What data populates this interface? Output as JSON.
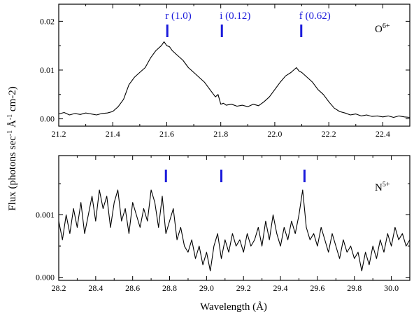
{
  "figure": {
    "ylabel": {
      "main": "Flux (photons sec",
      "exp1": "-1",
      "mid": " Å",
      "exp2": "-1",
      "tail": " cm-2)"
    },
    "xlabel": "Wavelength (Å)"
  },
  "colors": {
    "line_marker": "#1a1adb",
    "curve": "#000000"
  },
  "chart_data": [
    {
      "type": "line",
      "ion_label": {
        "base": "O",
        "sup": "6+"
      },
      "xlim": [
        21.2,
        22.5
      ],
      "ylim": [
        -0.0015,
        0.0235
      ],
      "xticks": [
        "21.2",
        "21.4",
        "21.6",
        "21.8",
        "22.0",
        "22.2",
        "22.4"
      ],
      "yticks": [
        "0.00",
        "0.01",
        "0.02"
      ],
      "line_markers": [
        {
          "x": 21.602,
          "label": "r (1.0)"
        },
        {
          "x": 21.804,
          "label": "i (0.12)"
        },
        {
          "x": 22.098,
          "label": "f (0.62)"
        }
      ],
      "series": [
        {
          "x": [
            21.2,
            21.22,
            21.24,
            21.26,
            21.28,
            21.3,
            21.32,
            21.34,
            21.36,
            21.38,
            21.4,
            21.42,
            21.44,
            21.46,
            21.48,
            21.5,
            21.52,
            21.54,
            21.56,
            21.58,
            21.59,
            21.6,
            21.61,
            21.62,
            21.64,
            21.66,
            21.68,
            21.7,
            21.72,
            21.74,
            21.76,
            21.78,
            21.79,
            21.8,
            21.81,
            21.82,
            21.84,
            21.86,
            21.88,
            21.9,
            21.92,
            21.94,
            21.96,
            21.98,
            22.0,
            22.02,
            22.04,
            22.06,
            22.08,
            22.09,
            22.1,
            22.11,
            22.12,
            22.14,
            22.16,
            22.18,
            22.2,
            22.22,
            22.24,
            22.26,
            22.28,
            22.3,
            22.32,
            22.34,
            22.36,
            22.38,
            22.4,
            22.42,
            22.44,
            22.46,
            22.48,
            22.5
          ],
          "y": [
            0.001,
            0.0013,
            0.0008,
            0.0011,
            0.0009,
            0.0012,
            0.001,
            0.0008,
            0.0011,
            0.0012,
            0.0015,
            0.0025,
            0.004,
            0.007,
            0.0085,
            0.0095,
            0.0105,
            0.0125,
            0.014,
            0.015,
            0.0158,
            0.015,
            0.0148,
            0.014,
            0.013,
            0.012,
            0.0105,
            0.0095,
            0.0085,
            0.0075,
            0.006,
            0.0045,
            0.005,
            0.003,
            0.0032,
            0.0028,
            0.003,
            0.0026,
            0.0028,
            0.0025,
            0.003,
            0.0027,
            0.0035,
            0.0045,
            0.006,
            0.0075,
            0.0088,
            0.0095,
            0.0105,
            0.0098,
            0.0095,
            0.009,
            0.0085,
            0.0075,
            0.006,
            0.005,
            0.0035,
            0.0022,
            0.0015,
            0.0012,
            0.0008,
            0.001,
            0.0006,
            0.0008,
            0.0005,
            0.0006,
            0.0004,
            0.0006,
            0.0003,
            0.0006,
            0.0004,
            0.0003
          ]
        }
      ]
    },
    {
      "type": "line",
      "ion_label": {
        "base": "N",
        "sup": "5+"
      },
      "xlim": [
        28.2,
        30.1
      ],
      "ylim": [
        -5e-05,
        0.00195
      ],
      "xticks": [
        "28.2",
        "28.4",
        "28.6",
        "28.8",
        "29.0",
        "29.2",
        "29.4",
        "29.6",
        "29.8",
        "30.0"
      ],
      "yticks": [
        "0.000",
        "0.001"
      ],
      "line_markers": [
        {
          "x": 28.78
        },
        {
          "x": 29.08
        },
        {
          "x": 29.53
        }
      ],
      "series": [
        {
          "x": [
            28.2,
            28.22,
            28.24,
            28.26,
            28.28,
            28.3,
            28.32,
            28.34,
            28.36,
            28.38,
            28.4,
            28.42,
            28.44,
            28.46,
            28.48,
            28.5,
            28.52,
            28.54,
            28.56,
            28.58,
            28.6,
            28.62,
            28.64,
            28.66,
            28.68,
            28.7,
            28.72,
            28.74,
            28.76,
            28.78,
            28.8,
            28.82,
            28.84,
            28.86,
            28.88,
            28.9,
            28.92,
            28.94,
            28.96,
            28.98,
            29.0,
            29.02,
            29.04,
            29.06,
            29.08,
            29.1,
            29.12,
            29.14,
            29.16,
            29.18,
            29.2,
            29.22,
            29.24,
            29.26,
            29.28,
            29.3,
            29.32,
            29.34,
            29.36,
            29.38,
            29.4,
            29.42,
            29.44,
            29.46,
            29.48,
            29.5,
            29.52,
            29.54,
            29.56,
            29.58,
            29.6,
            29.62,
            29.64,
            29.66,
            29.68,
            29.7,
            29.72,
            29.74,
            29.76,
            29.78,
            29.8,
            29.82,
            29.84,
            29.86,
            29.88,
            29.9,
            29.92,
            29.94,
            29.96,
            29.98,
            30.0,
            30.02,
            30.04,
            30.06,
            30.08,
            30.1
          ],
          "y": [
            0.0009,
            0.0006,
            0.001,
            0.0007,
            0.0011,
            0.0008,
            0.0012,
            0.0007,
            0.001,
            0.0013,
            0.0009,
            0.0014,
            0.0011,
            0.0013,
            0.0008,
            0.0012,
            0.0014,
            0.0009,
            0.0011,
            0.0007,
            0.0012,
            0.001,
            0.0008,
            0.0011,
            0.0009,
            0.0014,
            0.0012,
            0.0008,
            0.0013,
            0.0007,
            0.0009,
            0.0011,
            0.0006,
            0.0008,
            0.0005,
            0.0004,
            0.0006,
            0.0003,
            0.0005,
            0.0002,
            0.0004,
            0.0001,
            0.0005,
            0.0007,
            0.0003,
            0.0006,
            0.0004,
            0.0007,
            0.0005,
            0.0006,
            0.0004,
            0.0007,
            0.0005,
            0.0006,
            0.0008,
            0.0005,
            0.0009,
            0.0006,
            0.001,
            0.0007,
            0.0005,
            0.0008,
            0.0006,
            0.0009,
            0.0007,
            0.001,
            0.0014,
            0.0008,
            0.0006,
            0.0007,
            0.0005,
            0.0008,
            0.0006,
            0.0004,
            0.0007,
            0.0005,
            0.0003,
            0.0006,
            0.0004,
            0.0005,
            0.0003,
            0.0004,
            0.0001,
            0.0004,
            0.0002,
            0.0005,
            0.0003,
            0.0006,
            0.0004,
            0.0007,
            0.0005,
            0.0008,
            0.0006,
            0.0007,
            0.0005,
            0.0006
          ]
        }
      ]
    }
  ]
}
